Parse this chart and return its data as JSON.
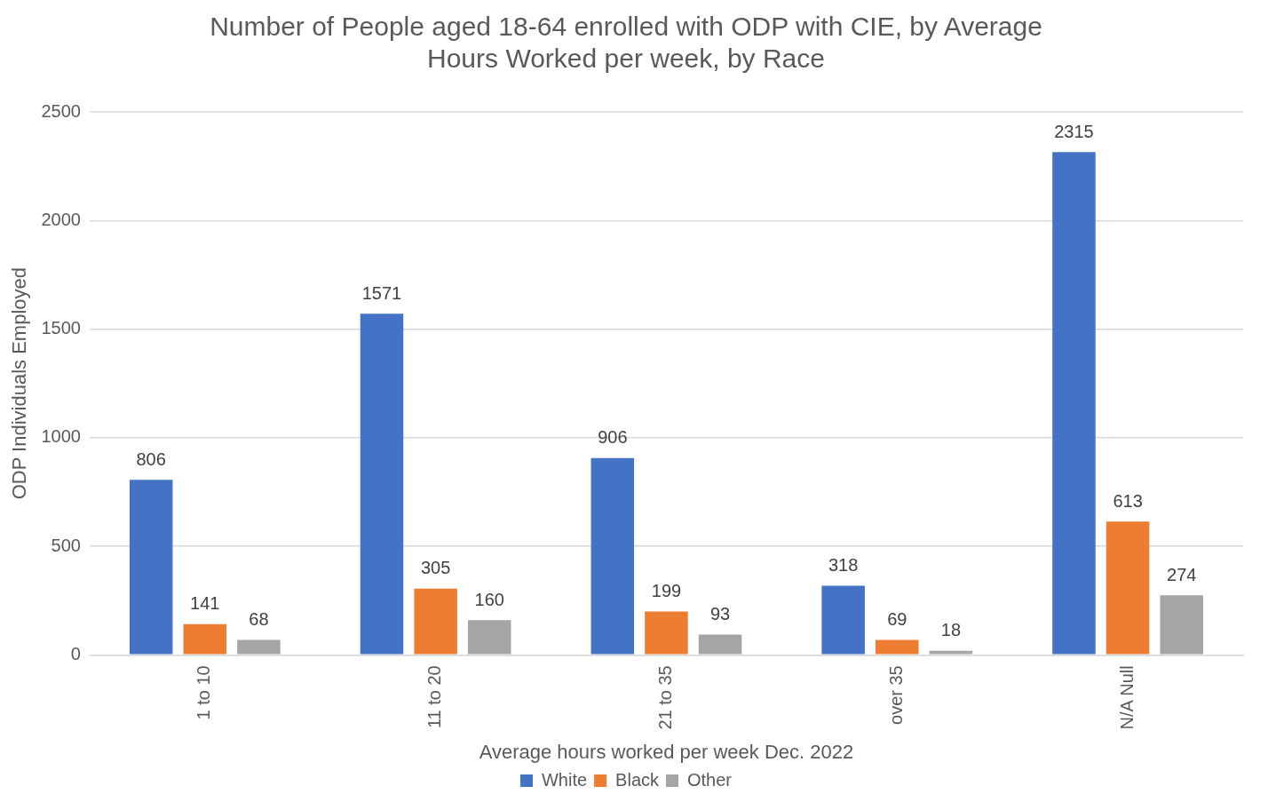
{
  "chart_data": {
    "type": "bar",
    "title": "Number of People aged 18-64 enrolled with ODP with CIE, by Average Hours Worked per week, by Race",
    "xlabel": "Average hours worked per week Dec. 2022",
    "ylabel": "ODP Individuals Employed",
    "categories": [
      "1 to 10",
      "11 to 20",
      "21 to 35",
      "over 35",
      "N/A Null"
    ],
    "series": [
      {
        "name": "White",
        "color": "#4472c4",
        "values": [
          806,
          1571,
          906,
          318,
          2315
        ]
      },
      {
        "name": "Black",
        "color": "#ed7d31",
        "values": [
          141,
          305,
          199,
          69,
          613
        ]
      },
      {
        "name": "Other",
        "color": "#a5a5a5",
        "values": [
          68,
          160,
          93,
          18,
          274
        ]
      }
    ],
    "ylim": [
      0,
      2500
    ],
    "yticks": [
      0,
      500,
      1000,
      1500,
      2000,
      2500
    ],
    "grid": "y",
    "legend": "bottom",
    "data_labels": true
  }
}
